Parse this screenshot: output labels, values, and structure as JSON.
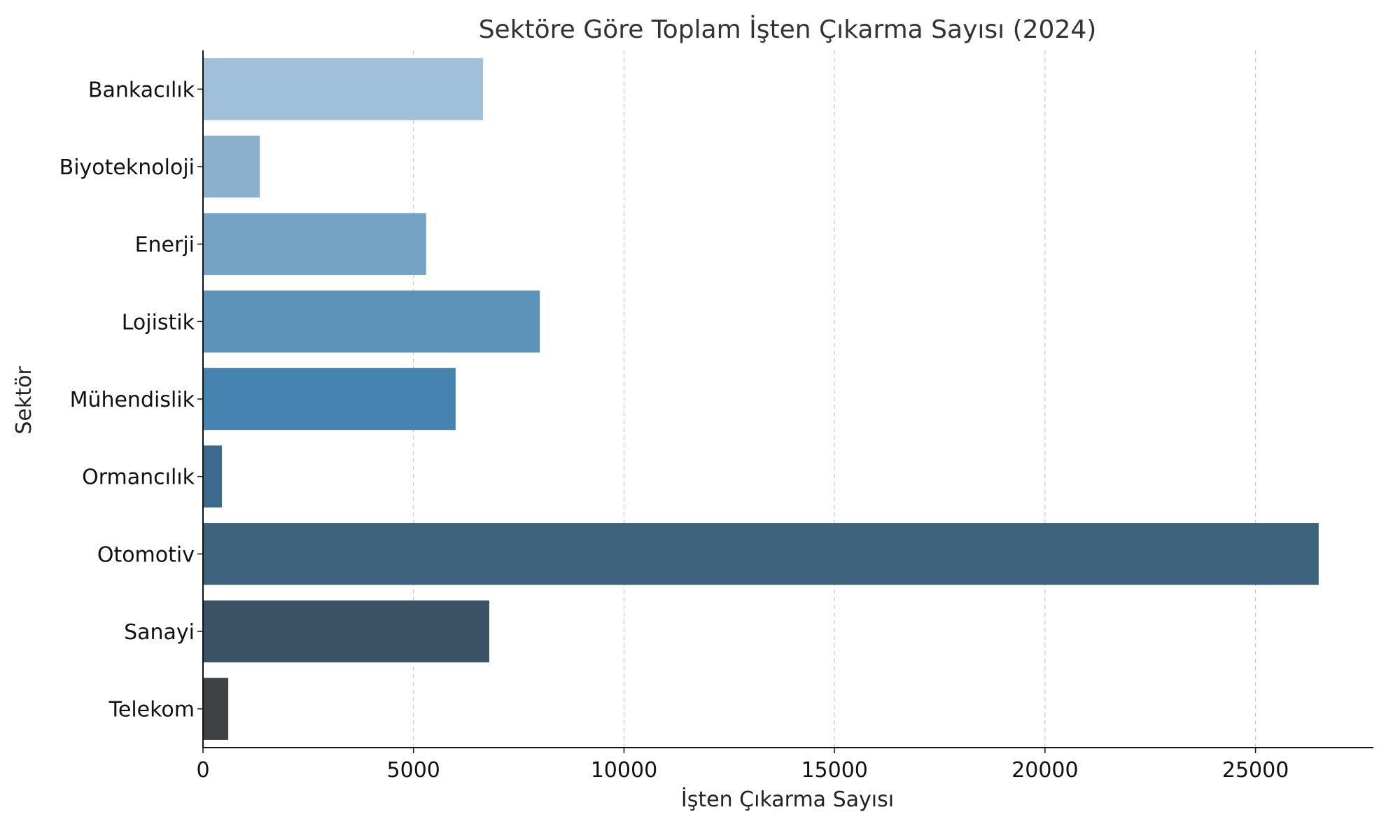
{
  "chart_data": {
    "type": "bar",
    "orientation": "horizontal",
    "title": "Sektöre Göre Toplam İşten Çıkarma Sayısı (2024)",
    "xlabel": "İşten Çıkarma Sayısı",
    "ylabel": "Sektör",
    "categories": [
      "Bankacılık",
      "Biyoteknoloji",
      "Enerji",
      "Lojistik",
      "Mühendislik",
      "Ormancılık",
      "Otomotiv",
      "Sanayi",
      "Telekom"
    ],
    "values": [
      6650,
      1350,
      5300,
      8000,
      6000,
      450,
      26500,
      6800,
      600
    ],
    "colors": [
      "#a0bfd8",
      "#8bb0cd",
      "#74a3c5",
      "#5e93b9",
      "#4683b0",
      "#3c6a8e",
      "#3f637d",
      "#3c5266",
      "#3e4245"
    ],
    "xlim": [
      0,
      27800
    ],
    "xticks": [
      0,
      5000,
      10000,
      15000,
      20000,
      25000
    ],
    "grid": "x-dashed"
  }
}
